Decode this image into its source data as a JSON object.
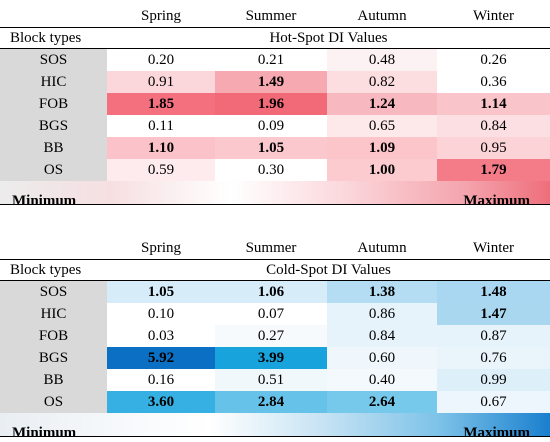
{
  "hot": {
    "seasons": [
      "Spring",
      "Summer",
      "Autumn",
      "Winter"
    ],
    "block_types_label": "Block types",
    "title": "Hot-Spot DI Values",
    "rows": [
      {
        "label": "SOS",
        "values": [
          "0.20",
          "0.21",
          "0.48",
          "0.26"
        ],
        "bold": [
          false,
          false,
          false,
          false
        ],
        "colors": [
          "#ffffff",
          "#ffffff",
          "#fdf2f3",
          "#ffffff"
        ]
      },
      {
        "label": "HIC",
        "values": [
          "0.91",
          "1.49",
          "0.82",
          "0.36"
        ],
        "bold": [
          false,
          true,
          false,
          false
        ],
        "colors": [
          "#fbd7db",
          "#f7a9b1",
          "#fcdde0",
          "#ffffff"
        ]
      },
      {
        "label": "FOB",
        "values": [
          "1.85",
          "1.96",
          "1.24",
          "1.14"
        ],
        "bold": [
          true,
          true,
          true,
          true
        ],
        "colors": [
          "#f5707e",
          "#f26a78",
          "#f8b8bf",
          "#f9c4ca"
        ]
      },
      {
        "label": "BGS",
        "values": [
          "0.11",
          "0.09",
          "0.65",
          "0.84"
        ],
        "bold": [
          false,
          false,
          false,
          false
        ],
        "colors": [
          "#ffffff",
          "#ffffff",
          "#fde8ea",
          "#fcdfe2"
        ]
      },
      {
        "label": "BB",
        "values": [
          "1.10",
          "1.05",
          "1.09",
          "0.95"
        ],
        "bold": [
          true,
          true,
          true,
          false
        ],
        "colors": [
          "#fbc3c9",
          "#fbc8ce",
          "#fbc5ca",
          "#fcd3d7"
        ]
      },
      {
        "label": "OS",
        "values": [
          "0.59",
          "0.30",
          "1.00",
          "1.79"
        ],
        "bold": [
          false,
          false,
          true,
          true
        ],
        "colors": [
          "#fdebed",
          "#ffffff",
          "#fbcbd0",
          "#f47b88"
        ]
      }
    ],
    "legend": {
      "min": "Minimum",
      "max": "Maximum"
    }
  },
  "cold": {
    "seasons": [
      "Spring",
      "Summer",
      "Autumn",
      "Winter"
    ],
    "block_types_label": "Block types",
    "title": "Cold-Spot DI Values",
    "rows": [
      {
        "label": "SOS",
        "values": [
          "1.05",
          "1.06",
          "1.38",
          "1.48"
        ],
        "bold": [
          true,
          true,
          true,
          true
        ],
        "colors": [
          "#d6ecf8",
          "#d6ecf8",
          "#b4dcf2",
          "#a9d6f0"
        ]
      },
      {
        "label": "HIC",
        "values": [
          "0.10",
          "0.07",
          "0.86",
          "1.47"
        ],
        "bold": [
          false,
          false,
          false,
          true
        ],
        "colors": [
          "#ffffff",
          "#ffffff",
          "#e6f3fb",
          "#aad7f0"
        ]
      },
      {
        "label": "FOB",
        "values": [
          "0.03",
          "0.27",
          "0.84",
          "0.87"
        ],
        "bold": [
          false,
          false,
          false,
          false
        ],
        "colors": [
          "#ffffff",
          "#f6fafd",
          "#e7f3fb",
          "#e6f3fb"
        ]
      },
      {
        "label": "BGS",
        "values": [
          "5.92",
          "3.99",
          "0.60",
          "0.76"
        ],
        "bold": [
          true,
          true,
          false,
          false
        ],
        "colors": [
          "#0b6fc4",
          "#19a3dc",
          "#eff7fc",
          "#e9f4fb"
        ]
      },
      {
        "label": "BB",
        "values": [
          "0.16",
          "0.51",
          "0.40",
          "0.99"
        ],
        "bold": [
          false,
          false,
          false,
          false
        ],
        "colors": [
          "#ffffff",
          "#f1f8fc",
          "#f4f9fd",
          "#ddeff9"
        ]
      },
      {
        "label": "OS",
        "values": [
          "3.60",
          "2.84",
          "2.64",
          "0.67"
        ],
        "bold": [
          true,
          true,
          true,
          false
        ],
        "colors": [
          "#36b0e2",
          "#66c2e9",
          "#77c9eb",
          "#edf6fc"
        ]
      }
    ],
    "legend": {
      "min": "Minimum",
      "max": "Maximum"
    }
  }
}
